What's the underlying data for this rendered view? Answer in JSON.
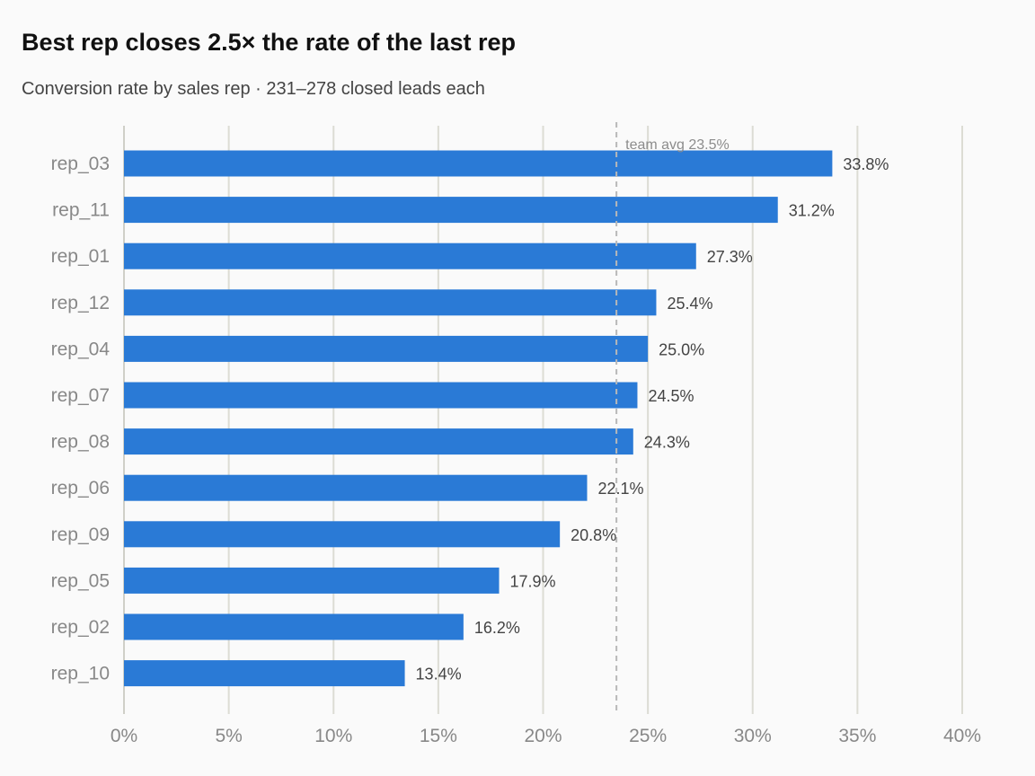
{
  "chart_data": {
    "type": "bar",
    "orientation": "horizontal",
    "title": "Best rep closes 2.5× the rate of the last rep",
    "subtitle": "Conversion rate by sales rep · 231–278 closed leads each",
    "xlabel": "",
    "ylabel": "",
    "xlim": [
      0,
      40
    ],
    "x_ticks": [
      0,
      5,
      10,
      15,
      20,
      25,
      30,
      35,
      40
    ],
    "x_tick_labels": [
      "0%",
      "5%",
      "10%",
      "15%",
      "20%",
      "25%",
      "30%",
      "35%",
      "40%"
    ],
    "grid": "vertical",
    "categories": [
      "rep_03",
      "rep_11",
      "rep_01",
      "rep_12",
      "rep_04",
      "rep_07",
      "rep_08",
      "rep_06",
      "rep_09",
      "rep_05",
      "rep_02",
      "rep_10"
    ],
    "values": [
      33.8,
      31.2,
      27.3,
      25.4,
      25.0,
      24.5,
      24.3,
      22.1,
      20.8,
      17.9,
      16.2,
      13.4
    ],
    "value_labels": [
      "33.8%",
      "31.2%",
      "27.3%",
      "25.4%",
      "25.0%",
      "24.5%",
      "24.3%",
      "22.1%",
      "20.8%",
      "17.9%",
      "16.2%",
      "13.4%"
    ],
    "reference_line": {
      "value": 23.5,
      "label": "team avg 23.5%",
      "style": "dashed"
    },
    "colors": {
      "bar": "#2a7ad6",
      "grid": "#dcdcd4",
      "reference": "#b8b8b8",
      "background": "#fafafa"
    }
  }
}
